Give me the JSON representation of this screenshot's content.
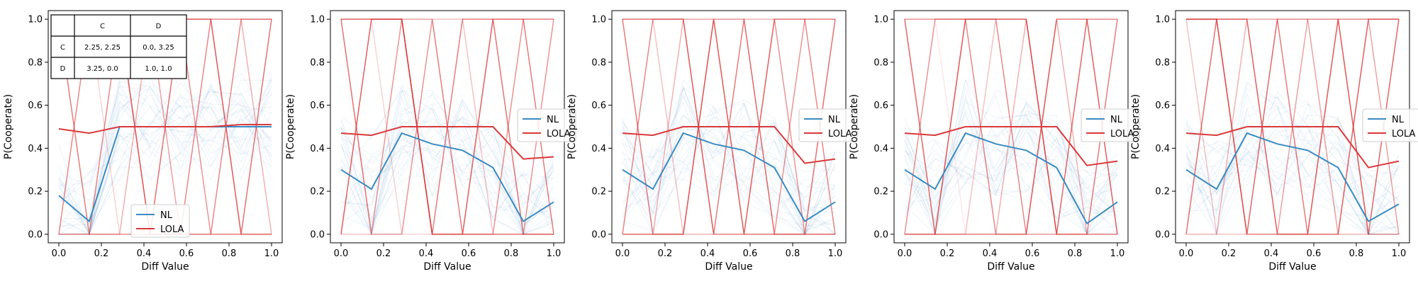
{
  "colors": {
    "nl": "#1f77b4",
    "lola": "#d62728",
    "nl_mean": "#3a8bc2",
    "lola_mean": "#d9393b"
  },
  "chart_data": [
    {
      "type": "line",
      "xlabel": "Diff Value",
      "ylabel": "P(Cooperate)",
      "xlim": [
        -0.05,
        1.05
      ],
      "ylim": [
        -0.04,
        1.04
      ],
      "xticks": [
        "0.0",
        "0.2",
        "0.4",
        "0.6",
        "0.8",
        "1.0"
      ],
      "yticks": [
        "0.0",
        "0.2",
        "0.4",
        "0.6",
        "0.8",
        "1.0"
      ],
      "legend": {
        "position": "lower-center",
        "entries": [
          "NL",
          "LOLA"
        ]
      },
      "x": [
        0.0,
        0.1429,
        0.2857,
        0.4286,
        0.5714,
        0.7143,
        0.8571,
        1.0
      ],
      "series": [
        {
          "name": "NL",
          "values": [
            0.18,
            0.06,
            0.5,
            0.5,
            0.5,
            0.5,
            0.5,
            0.5
          ]
        },
        {
          "name": "LOLA",
          "values": [
            0.49,
            0.47,
            0.5,
            0.5,
            0.5,
            0.5,
            0.51,
            0.51
          ]
        }
      ],
      "payoff_table": {
        "header": [
          "",
          "C",
          "D"
        ],
        "rows": [
          [
            "C",
            "2.25, 2.25",
            "0.0, 3.25"
          ],
          [
            "D",
            "3.25, 0.0",
            "1.0, 1.0"
          ]
        ]
      }
    },
    {
      "type": "line",
      "xlabel": "Diff Value",
      "ylabel": "P(Cooperate)",
      "xlim": [
        -0.05,
        1.05
      ],
      "ylim": [
        -0.04,
        1.04
      ],
      "xticks": [
        "0.0",
        "0.2",
        "0.4",
        "0.6",
        "0.8",
        "1.0"
      ],
      "yticks": [
        "0.0",
        "0.2",
        "0.4",
        "0.6",
        "0.8",
        "1.0"
      ],
      "legend": {
        "position": "center-right",
        "entries": [
          "NL",
          "LOLA"
        ]
      },
      "x": [
        0.0,
        0.1429,
        0.2857,
        0.4286,
        0.5714,
        0.7143,
        0.8571,
        1.0
      ],
      "series": [
        {
          "name": "NL",
          "values": [
            0.3,
            0.21,
            0.47,
            0.42,
            0.39,
            0.31,
            0.06,
            0.15
          ]
        },
        {
          "name": "LOLA",
          "values": [
            0.47,
            0.46,
            0.5,
            0.5,
            0.5,
            0.5,
            0.35,
            0.36
          ]
        }
      ]
    },
    {
      "type": "line",
      "xlabel": "Diff Value",
      "ylabel": "P(Cooperate)",
      "xlim": [
        -0.05,
        1.05
      ],
      "ylim": [
        -0.04,
        1.04
      ],
      "xticks": [
        "0.0",
        "0.2",
        "0.4",
        "0.6",
        "0.8",
        "1.0"
      ],
      "yticks": [
        "0.0",
        "0.2",
        "0.4",
        "0.6",
        "0.8",
        "1.0"
      ],
      "legend": {
        "position": "center-right",
        "entries": [
          "NL",
          "LOLA"
        ]
      },
      "x": [
        0.0,
        0.1429,
        0.2857,
        0.4286,
        0.5714,
        0.7143,
        0.8571,
        1.0
      ],
      "series": [
        {
          "name": "NL",
          "values": [
            0.3,
            0.21,
            0.47,
            0.42,
            0.39,
            0.31,
            0.06,
            0.15
          ]
        },
        {
          "name": "LOLA",
          "values": [
            0.47,
            0.46,
            0.5,
            0.5,
            0.5,
            0.5,
            0.33,
            0.35
          ]
        }
      ]
    },
    {
      "type": "line",
      "xlabel": "Diff Value",
      "ylabel": "P(Cooperate)",
      "xlim": [
        -0.05,
        1.05
      ],
      "ylim": [
        -0.04,
        1.04
      ],
      "xticks": [
        "0.0",
        "0.2",
        "0.4",
        "0.6",
        "0.8",
        "1.0"
      ],
      "yticks": [
        "0.0",
        "0.2",
        "0.4",
        "0.6",
        "0.8",
        "1.0"
      ],
      "legend": {
        "position": "center-right",
        "entries": [
          "NL",
          "LOLA"
        ]
      },
      "x": [
        0.0,
        0.1429,
        0.2857,
        0.4286,
        0.5714,
        0.7143,
        0.8571,
        1.0
      ],
      "series": [
        {
          "name": "NL",
          "values": [
            0.3,
            0.21,
            0.47,
            0.42,
            0.39,
            0.31,
            0.05,
            0.15
          ]
        },
        {
          "name": "LOLA",
          "values": [
            0.47,
            0.46,
            0.5,
            0.5,
            0.5,
            0.5,
            0.32,
            0.34
          ]
        }
      ]
    },
    {
      "type": "line",
      "xlabel": "Diff Value",
      "ylabel": "P(Cooperate)",
      "xlim": [
        -0.05,
        1.05
      ],
      "ylim": [
        -0.04,
        1.04
      ],
      "xticks": [
        "0.0",
        "0.2",
        "0.4",
        "0.6",
        "0.8",
        "1.0"
      ],
      "yticks": [
        "0.0",
        "0.2",
        "0.4",
        "0.6",
        "0.8",
        "1.0"
      ],
      "legend": {
        "position": "center-right",
        "entries": [
          "NL",
          "LOLA"
        ]
      },
      "x": [
        0.0,
        0.1429,
        0.2857,
        0.4286,
        0.5714,
        0.7143,
        0.8571,
        1.0
      ],
      "series": [
        {
          "name": "NL",
          "values": [
            0.3,
            0.21,
            0.47,
            0.42,
            0.39,
            0.31,
            0.06,
            0.14
          ]
        },
        {
          "name": "LOLA",
          "values": [
            0.47,
            0.46,
            0.5,
            0.5,
            0.5,
            0.5,
            0.31,
            0.34
          ]
        }
      ]
    }
  ]
}
